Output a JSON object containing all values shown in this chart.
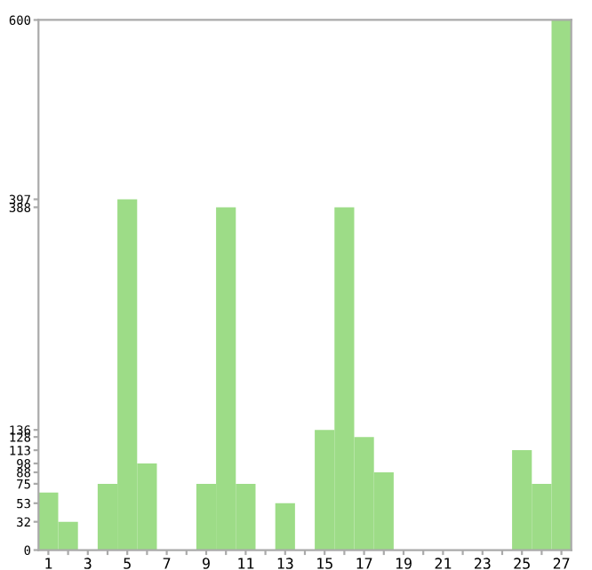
{
  "chart_data": {
    "type": "bar",
    "categories": [
      "1",
      null,
      "3",
      null,
      "5",
      null,
      "7",
      null,
      "9",
      null,
      "11",
      null,
      "13",
      null,
      "15",
      null,
      "17",
      null,
      "19",
      null,
      "21",
      null,
      "23",
      null,
      "25",
      null,
      "27"
    ],
    "values": [
      65,
      32,
      0,
      75,
      397,
      98,
      0,
      0,
      75,
      388,
      75,
      0,
      53,
      0,
      136,
      388,
      128,
      88,
      0,
      0,
      0,
      0,
      0,
      0,
      113,
      75,
      600
    ],
    "color": "#9ddc87",
    "ylim": [
      0,
      600
    ],
    "yticks": [
      0,
      32,
      53,
      75,
      88,
      98,
      113,
      128,
      136,
      388,
      397,
      600
    ],
    "grid": false
  }
}
